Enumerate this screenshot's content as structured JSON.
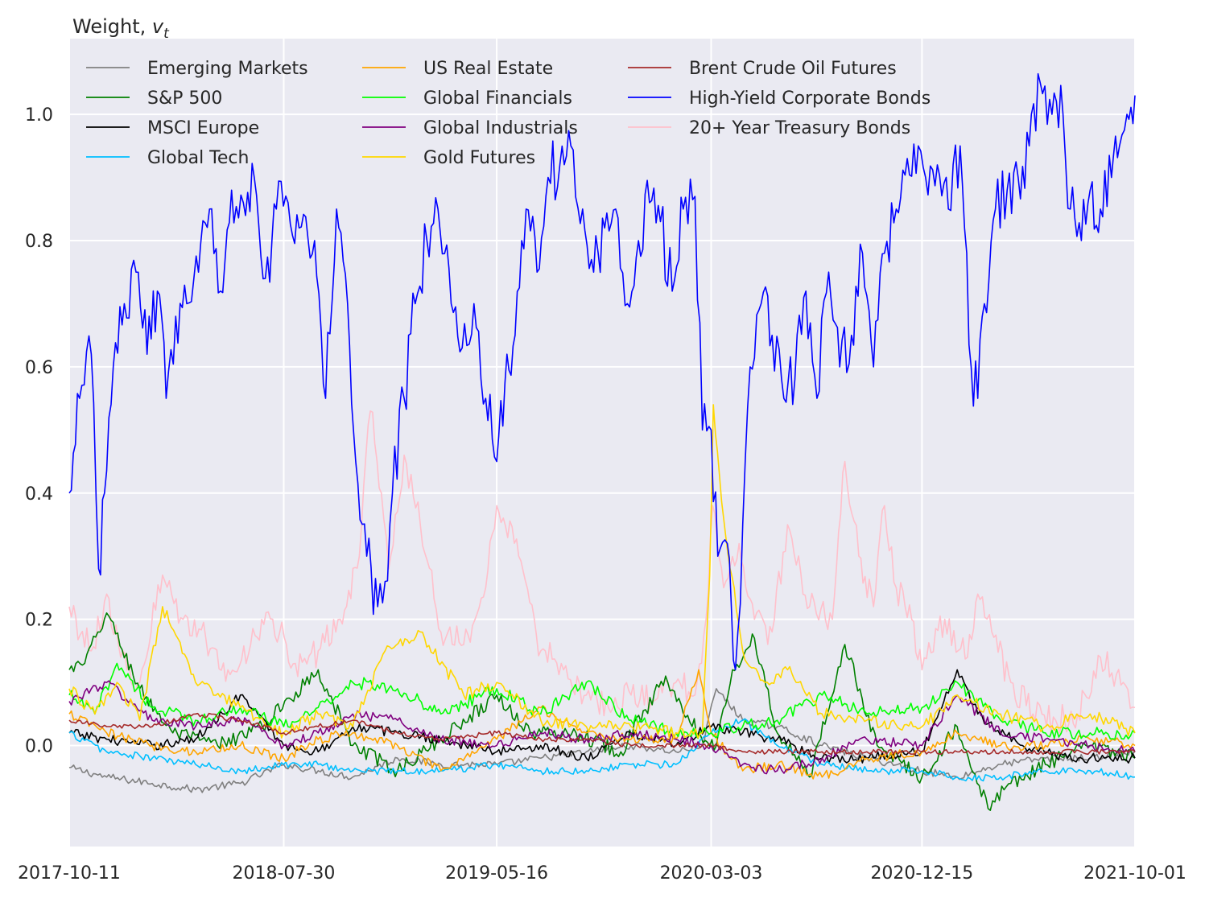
{
  "chart_data": {
    "type": "line",
    "title": "Weight, v_t",
    "title_text": "Weight, ",
    "title_sym": "v",
    "title_sub": "t",
    "xlabel": "",
    "ylabel": "",
    "x_start": "2017-10-11",
    "x_end": "2021-10-01",
    "x_ticks": [
      "2017-10-11",
      "2018-07-30",
      "2019-05-16",
      "2020-03-03",
      "2020-12-15",
      "2021-10-01"
    ],
    "y_ticks": [
      "0.0",
      "0.2",
      "0.4",
      "0.6",
      "0.8",
      "1.0"
    ],
    "y_tick_values": [
      0.0,
      0.2,
      0.4,
      0.6,
      0.8,
      1.0
    ],
    "ylim": [
      -0.16,
      1.12
    ],
    "grid": true,
    "legend_position": "top-left",
    "legend_columns": 3,
    "series": [
      {
        "name": "Emerging Markets",
        "color": "#808080",
        "x": [
          "2017-10-11",
          "2017-12-01",
          "2018-02-01",
          "2018-04-01",
          "2018-06-01",
          "2018-07-30",
          "2018-09-15",
          "2018-11-01",
          "2019-01-01",
          "2019-03-01",
          "2019-05-16",
          "2019-07-15",
          "2019-09-15",
          "2019-11-15",
          "2020-01-15",
          "2020-02-20",
          "2020-03-10",
          "2020-04-15",
          "2020-06-01",
          "2020-08-01",
          "2020-10-01",
          "2020-12-15",
          "2021-02-01",
          "2021-04-01",
          "2021-06-01",
          "2021-08-01",
          "2021-10-01"
        ],
        "y": [
          -0.035,
          -0.05,
          -0.06,
          -0.07,
          -0.06,
          -0.03,
          -0.04,
          -0.05,
          -0.02,
          -0.03,
          -0.03,
          -0.02,
          -0.01,
          0.0,
          -0.01,
          0.0,
          0.09,
          0.04,
          0.03,
          0.0,
          -0.02,
          -0.04,
          -0.05,
          -0.03,
          -0.02,
          -0.02,
          -0.01
        ]
      },
      {
        "name": "S&P 500",
        "color": "#008000",
        "x": [
          "2017-10-11",
          "2017-11-01",
          "2017-12-01",
          "2018-01-15",
          "2018-03-01",
          "2018-05-01",
          "2018-07-01",
          "2018-09-15",
          "2018-11-01",
          "2019-01-01",
          "2019-03-01",
          "2019-05-16",
          "2019-07-01",
          "2019-09-01",
          "2019-11-01",
          "2020-01-01",
          "2020-02-15",
          "2020-03-10",
          "2020-04-01",
          "2020-05-01",
          "2020-06-01",
          "2020-07-15",
          "2020-09-01",
          "2020-10-15",
          "2020-12-15",
          "2021-02-01",
          "2021-03-15",
          "2021-04-15",
          "2021-06-01",
          "2021-08-01",
          "2021-10-01"
        ],
        "y": [
          0.12,
          0.13,
          0.21,
          0.09,
          0.02,
          0.0,
          0.03,
          0.12,
          0.0,
          -0.04,
          0.01,
          0.08,
          0.02,
          0.02,
          -0.01,
          0.11,
          0.02,
          0.0,
          0.12,
          0.17,
          0.02,
          -0.05,
          0.16,
          0.0,
          -0.05,
          0.03,
          -0.1,
          -0.06,
          -0.03,
          0.0,
          -0.02
        ]
      },
      {
        "name": "MSCI Europe",
        "color": "#000000",
        "x": [
          "2017-10-11",
          "2017-12-01",
          "2018-02-01",
          "2018-04-01",
          "2018-06-01",
          "2018-07-30",
          "2018-09-15",
          "2018-11-01",
          "2019-01-01",
          "2019-03-01",
          "2019-05-16",
          "2019-07-15",
          "2019-09-15",
          "2019-11-15",
          "2020-01-15",
          "2020-03-03",
          "2020-04-15",
          "2020-06-01",
          "2020-08-01",
          "2020-10-01",
          "2020-12-15",
          "2021-02-01",
          "2021-03-01",
          "2021-05-01",
          "2021-07-01",
          "2021-10-01"
        ],
        "y": [
          0.02,
          0.01,
          0.0,
          0.01,
          0.08,
          0.0,
          -0.01,
          0.03,
          0.02,
          0.01,
          -0.01,
          0.0,
          -0.02,
          0.02,
          0.0,
          0.03,
          0.02,
          0.01,
          -0.02,
          -0.02,
          -0.01,
          0.12,
          0.05,
          0.0,
          -0.02,
          -0.02
        ]
      },
      {
        "name": "Global Tech",
        "color": "#00bfff",
        "x": [
          "2017-10-11",
          "2017-12-01",
          "2018-02-01",
          "2018-04-01",
          "2018-06-01",
          "2018-07-30",
          "2018-09-15",
          "2018-11-01",
          "2019-01-01",
          "2019-03-01",
          "2019-05-16",
          "2019-07-15",
          "2019-09-15",
          "2019-11-15",
          "2020-01-15",
          "2020-03-03",
          "2020-04-15",
          "2020-06-01",
          "2020-08-01",
          "2020-10-01",
          "2020-12-15",
          "2021-02-01",
          "2021-04-01",
          "2021-06-01",
          "2021-08-01",
          "2021-10-01"
        ],
        "y": [
          0.02,
          -0.01,
          -0.02,
          -0.03,
          -0.04,
          -0.03,
          -0.03,
          -0.04,
          -0.04,
          -0.04,
          -0.03,
          -0.04,
          -0.04,
          -0.03,
          -0.03,
          0.02,
          0.04,
          0.0,
          -0.03,
          -0.04,
          -0.04,
          -0.05,
          -0.05,
          -0.04,
          -0.04,
          -0.05
        ]
      },
      {
        "name": "US Real Estate",
        "color": "#ffa500",
        "x": [
          "2017-10-11",
          "2017-12-01",
          "2018-02-01",
          "2018-04-01",
          "2018-06-01",
          "2018-07-30",
          "2018-09-15",
          "2018-11-01",
          "2019-01-01",
          "2019-03-01",
          "2019-05-16",
          "2019-07-15",
          "2019-09-15",
          "2019-11-15",
          "2020-01-15",
          "2020-02-15",
          "2020-03-03",
          "2020-04-15",
          "2020-06-01",
          "2020-08-01",
          "2020-10-01",
          "2020-12-15",
          "2021-02-01",
          "2021-04-01",
          "2021-06-01",
          "2021-08-01",
          "2021-10-01"
        ],
        "y": [
          0.05,
          0.02,
          0.0,
          -0.01,
          0.0,
          -0.02,
          0.01,
          0.02,
          0.0,
          -0.04,
          0.01,
          0.06,
          0.02,
          0.01,
          0.01,
          0.12,
          0.02,
          -0.04,
          -0.03,
          -0.05,
          -0.02,
          -0.01,
          0.02,
          0.0,
          0.0,
          0.01,
          0.0
        ]
      },
      {
        "name": "Global Financials",
        "color": "#00ff00",
        "x": [
          "2017-10-11",
          "2017-11-15",
          "2017-12-15",
          "2018-02-01",
          "2018-04-01",
          "2018-06-01",
          "2018-07-30",
          "2018-09-15",
          "2018-11-01",
          "2019-01-01",
          "2019-03-01",
          "2019-05-16",
          "2019-07-15",
          "2019-09-15",
          "2019-11-15",
          "2020-01-15",
          "2020-03-03",
          "2020-04-15",
          "2020-06-01",
          "2020-08-01",
          "2020-10-01",
          "2020-12-15",
          "2021-02-01",
          "2021-04-01",
          "2021-06-01",
          "2021-08-01",
          "2021-10-01"
        ],
        "y": [
          0.08,
          0.05,
          0.13,
          0.06,
          0.04,
          0.06,
          0.03,
          0.06,
          0.1,
          0.09,
          0.05,
          0.09,
          0.05,
          0.1,
          0.04,
          0.02,
          0.02,
          0.03,
          0.04,
          0.08,
          0.05,
          0.06,
          0.1,
          0.04,
          0.02,
          0.02,
          0.02
        ]
      },
      {
        "name": "Global Industrials",
        "color": "#800080",
        "x": [
          "2017-10-11",
          "2017-12-01",
          "2018-02-01",
          "2018-04-01",
          "2018-06-01",
          "2018-07-30",
          "2018-09-15",
          "2018-11-01",
          "2019-01-01",
          "2019-03-01",
          "2019-05-16",
          "2019-07-15",
          "2019-09-15",
          "2019-11-15",
          "2020-01-15",
          "2020-03-03",
          "2020-04-15",
          "2020-06-01",
          "2020-08-01",
          "2020-10-01",
          "2020-12-15",
          "2021-02-01",
          "2021-04-01",
          "2021-06-01",
          "2021-08-01",
          "2021-10-01"
        ],
        "y": [
          0.07,
          0.1,
          0.04,
          0.03,
          0.04,
          0.0,
          0.02,
          0.05,
          0.04,
          0.01,
          0.0,
          0.02,
          0.01,
          0.02,
          0.01,
          0.0,
          -0.03,
          -0.04,
          -0.02,
          0.01,
          0.0,
          0.08,
          0.02,
          0.01,
          0.0,
          -0.01
        ]
      },
      {
        "name": "Gold Futures",
        "color": "#ffd700",
        "x": [
          "2017-10-11",
          "2017-11-15",
          "2017-12-15",
          "2018-01-15",
          "2018-02-15",
          "2018-04-01",
          "2018-06-01",
          "2018-07-30",
          "2018-09-15",
          "2018-11-01",
          "2018-12-15",
          "2019-02-01",
          "2019-04-01",
          "2019-05-16",
          "2019-07-15",
          "2019-09-15",
          "2019-11-15",
          "2020-01-15",
          "2020-02-20",
          "2020-03-01",
          "2020-03-06",
          "2020-03-20",
          "2020-04-15",
          "2020-05-15",
          "2020-06-15",
          "2020-08-01",
          "2020-10-01",
          "2020-12-15",
          "2021-02-01",
          "2021-04-01",
          "2021-06-01",
          "2021-08-01",
          "2021-10-01"
        ],
        "y": [
          0.09,
          0.05,
          0.1,
          0.04,
          0.22,
          0.1,
          0.06,
          0.02,
          0.05,
          0.03,
          0.15,
          0.18,
          0.08,
          0.1,
          0.04,
          0.03,
          0.03,
          0.02,
          0.02,
          0.27,
          0.54,
          0.36,
          0.15,
          0.1,
          0.12,
          0.05,
          0.04,
          0.03,
          0.08,
          0.05,
          0.03,
          0.05,
          0.02
        ]
      },
      {
        "name": "Brent Crude Oil Futures",
        "color": "#a52a2a",
        "x": [
          "2017-10-11",
          "2017-12-01",
          "2018-02-01",
          "2018-04-01",
          "2018-06-01",
          "2018-07-30",
          "2018-09-15",
          "2018-11-01",
          "2019-01-01",
          "2019-03-01",
          "2019-05-16",
          "2019-07-15",
          "2019-09-15",
          "2019-11-15",
          "2020-01-15",
          "2020-03-03",
          "2020-04-15",
          "2020-06-01",
          "2020-08-01",
          "2020-10-01",
          "2020-12-15",
          "2021-02-01",
          "2021-04-01",
          "2021-06-01",
          "2021-08-01",
          "2021-10-01"
        ],
        "y": [
          0.04,
          0.03,
          0.03,
          0.05,
          0.04,
          0.02,
          0.03,
          0.04,
          0.02,
          0.01,
          0.02,
          0.01,
          0.01,
          0.0,
          0.0,
          0.0,
          -0.01,
          -0.01,
          -0.01,
          -0.01,
          -0.01,
          -0.01,
          -0.01,
          -0.01,
          -0.01,
          -0.01
        ]
      },
      {
        "name": "High-Yield Corporate Bonds",
        "color": "#0000ff",
        "x": [
          "2017-10-11",
          "2017-10-25",
          "2017-11-10",
          "2017-11-20",
          "2017-11-28",
          "2017-12-10",
          "2017-12-25",
          "2018-01-10",
          "2018-01-25",
          "2018-02-08",
          "2018-02-20",
          "2018-03-05",
          "2018-03-20",
          "2018-04-05",
          "2018-04-20",
          "2018-05-05",
          "2018-05-20",
          "2018-06-05",
          "2018-06-20",
          "2018-07-05",
          "2018-07-20",
          "2018-08-05",
          "2018-08-20",
          "2018-09-10",
          "2018-09-25",
          "2018-10-10",
          "2018-10-25",
          "2018-11-05",
          "2018-11-20",
          "2018-12-05",
          "2018-12-15",
          "2018-12-25",
          "2019-01-10",
          "2019-01-25",
          "2019-02-10",
          "2019-02-25",
          "2019-03-15",
          "2019-03-30",
          "2019-04-15",
          "2019-05-01",
          "2019-05-16",
          "2019-05-30",
          "2019-06-10",
          "2019-06-25",
          "2019-07-10",
          "2019-07-25",
          "2019-08-10",
          "2019-08-25",
          "2019-09-10",
          "2019-09-25",
          "2019-10-10",
          "2019-10-25",
          "2019-11-10",
          "2019-11-25",
          "2019-12-10",
          "2019-12-25",
          "2020-01-10",
          "2020-01-25",
          "2020-02-10",
          "2020-02-20",
          "2020-03-03",
          "2020-03-12",
          "2020-03-25",
          "2020-04-05",
          "2020-04-15",
          "2020-04-25",
          "2020-05-10",
          "2020-05-25",
          "2020-06-10",
          "2020-06-25",
          "2020-07-10",
          "2020-07-25",
          "2020-08-10",
          "2020-08-25",
          "2020-09-10",
          "2020-09-25",
          "2020-10-10",
          "2020-10-25",
          "2020-11-10",
          "2020-11-25",
          "2020-12-10",
          "2020-12-20",
          "2021-01-05",
          "2021-01-20",
          "2021-02-05",
          "2021-02-20",
          "2021-03-01",
          "2021-03-10",
          "2021-03-25",
          "2021-04-10",
          "2021-04-25",
          "2021-05-10",
          "2021-05-25",
          "2021-06-10",
          "2021-06-25",
          "2021-07-05",
          "2021-07-20",
          "2021-08-01",
          "2021-08-15",
          "2021-08-30",
          "2021-09-10",
          "2021-09-20",
          "2021-10-01"
        ],
        "y": [
          0.4,
          0.55,
          0.62,
          0.28,
          0.4,
          0.6,
          0.7,
          0.75,
          0.62,
          0.72,
          0.55,
          0.68,
          0.7,
          0.75,
          0.85,
          0.72,
          0.88,
          0.86,
          0.9,
          0.74,
          0.85,
          0.86,
          0.82,
          0.8,
          0.55,
          0.85,
          0.7,
          0.45,
          0.3,
          0.22,
          0.26,
          0.4,
          0.55,
          0.7,
          0.8,
          0.85,
          0.7,
          0.63,
          0.7,
          0.55,
          0.45,
          0.62,
          0.65,
          0.85,
          0.75,
          0.9,
          0.92,
          0.95,
          0.85,
          0.75,
          0.82,
          0.85,
          0.7,
          0.8,
          0.86,
          0.83,
          0.72,
          0.85,
          0.87,
          0.5,
          0.5,
          0.3,
          0.32,
          0.12,
          0.35,
          0.6,
          0.7,
          0.65,
          0.55,
          0.58,
          0.72,
          0.55,
          0.75,
          0.6,
          0.65,
          0.78,
          0.6,
          0.78,
          0.85,
          0.93,
          0.95,
          0.9,
          0.92,
          0.85,
          0.95,
          0.6,
          0.55,
          0.7,
          0.85,
          0.88,
          0.9,
          0.95,
          1.05,
          1.0,
          1.0,
          0.85,
          0.8,
          0.88,
          0.85,
          0.9,
          0.95,
          1.0,
          1.03
        ]
      },
      {
        "name": "20+ Year Treasury Bonds",
        "color": "#ffc0cb",
        "x": [
          "2017-10-11",
          "2017-11-10",
          "2017-12-01",
          "2017-12-20",
          "2018-01-15",
          "2018-02-15",
          "2018-03-15",
          "2018-04-15",
          "2018-05-15",
          "2018-06-15",
          "2018-07-15",
          "2018-08-15",
          "2018-09-15",
          "2018-10-15",
          "2018-11-10",
          "2018-11-25",
          "2018-12-10",
          "2018-12-20",
          "2019-01-10",
          "2019-02-01",
          "2019-03-01",
          "2019-04-01",
          "2019-05-01",
          "2019-05-16",
          "2019-06-15",
          "2019-07-15",
          "2019-08-15",
          "2019-09-15",
          "2019-10-15",
          "2019-11-15",
          "2019-12-15",
          "2020-01-15",
          "2020-02-10",
          "2020-02-25",
          "2020-03-05",
          "2020-03-20",
          "2020-04-10",
          "2020-05-01",
          "2020-05-25",
          "2020-06-15",
          "2020-07-15",
          "2020-08-15",
          "2020-09-01",
          "2020-09-20",
          "2020-10-10",
          "2020-10-25",
          "2020-11-10",
          "2020-12-01",
          "2020-12-15",
          "2021-01-15",
          "2021-02-15",
          "2021-03-01",
          "2021-03-20",
          "2021-04-15",
          "2021-05-15",
          "2021-06-15",
          "2021-07-15",
          "2021-08-15",
          "2021-09-15",
          "2021-10-01"
        ],
        "y": [
          0.22,
          0.15,
          0.24,
          0.14,
          0.1,
          0.27,
          0.2,
          0.17,
          0.12,
          0.16,
          0.2,
          0.13,
          0.15,
          0.2,
          0.3,
          0.53,
          0.4,
          0.28,
          0.46,
          0.35,
          0.18,
          0.16,
          0.25,
          0.38,
          0.3,
          0.15,
          0.12,
          0.08,
          0.06,
          0.08,
          0.07,
          0.1,
          0.08,
          0.2,
          0.38,
          0.25,
          0.32,
          0.2,
          0.18,
          0.35,
          0.22,
          0.2,
          0.45,
          0.3,
          0.22,
          0.38,
          0.25,
          0.2,
          0.12,
          0.2,
          0.14,
          0.24,
          0.18,
          0.1,
          0.05,
          0.04,
          0.05,
          0.14,
          0.1,
          0.06
        ]
      }
    ]
  }
}
